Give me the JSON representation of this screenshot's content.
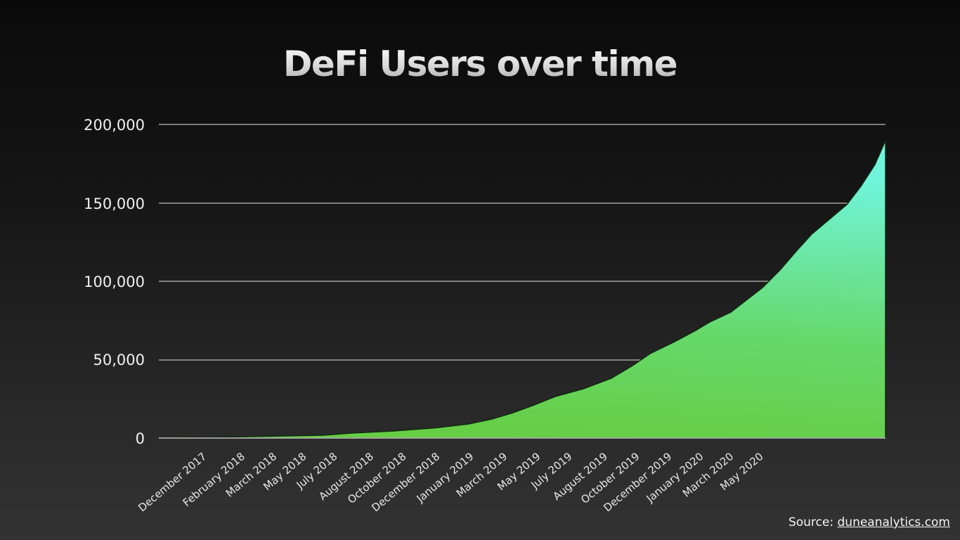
{
  "chart_data": {
    "type": "area",
    "title": "DeFi Users over time",
    "xlabel": "",
    "ylabel": "",
    "ylim": [
      0,
      200000
    ],
    "yticks": [
      0,
      50000,
      100000,
      150000,
      200000
    ],
    "ytick_labels": [
      "0",
      "50,000",
      "100,000",
      "150,000",
      "200,000"
    ],
    "grid": true,
    "legend": null,
    "categories": [
      "December 2017",
      "February 2018",
      "March 2018",
      "May 2018",
      "July 2018",
      "August 2018",
      "October 2018",
      "December 2018",
      "January 2019",
      "March 2019",
      "May 2019",
      "July 2019",
      "August 2019",
      "October 2019",
      "December 2019",
      "January 2020",
      "March 2020",
      "May 2020"
    ],
    "series": [
      {
        "name": "DeFi Users",
        "values": [
          0,
          500,
          1000,
          1500,
          2000,
          3500,
          5500,
          9000,
          16000,
          27000,
          36000,
          46000,
          62000,
          78000,
          96000,
          125000,
          147000,
          190000
        ]
      }
    ],
    "fill_gradient": [
      "#66cc3e",
      "#6ef0d8"
    ],
    "source_label": "Source: ",
    "source_link": "duneanalytics.com"
  }
}
